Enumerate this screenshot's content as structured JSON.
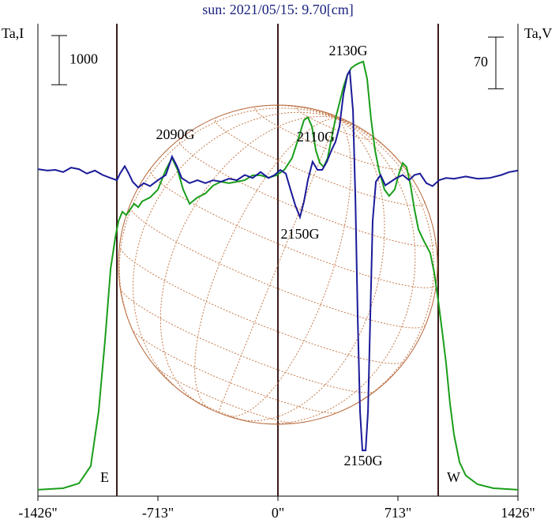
{
  "chart_data": {
    "type": "line",
    "title": "sun: 2021/05/15: 9.70[cm]",
    "y_label": "Ta,I",
    "y2_label": "Ta,V",
    "xlim": [
      -1426,
      1426
    ],
    "xticks": [
      {
        "value": -1426,
        "label": "-1426\""
      },
      {
        "value": -713,
        "label": "-713\""
      },
      {
        "value": 0,
        "label": "0\""
      },
      {
        "value": 713,
        "label": "713\""
      },
      {
        "value": 1426,
        "label": "1426\""
      }
    ],
    "ylim": [
      0,
      9600
    ],
    "y2lim": [
      -440,
      200
    ],
    "scale_bar_y": 1000,
    "scale_bar_y2": 70,
    "limb_labels": [
      "E",
      "W"
    ],
    "annotations": [
      "2090G",
      "2130G",
      "2110G",
      "2150G",
      "2150G"
    ],
    "series": [
      {
        "color": "#1a9e1a",
        "x": [
          -1426,
          -1276,
          -1182,
          -1112,
          -1065,
          -1027,
          -994,
          -966,
          -947,
          -924,
          -901,
          -877,
          -854,
          -830,
          -807,
          -760,
          -713,
          -666,
          -629,
          -596,
          -563,
          -525,
          -478,
          -431,
          -385,
          -338,
          -291,
          -244,
          -197,
          -150,
          -103,
          -56,
          -9,
          38,
          84,
          122,
          155,
          178,
          202,
          225,
          249,
          272,
          295,
          319,
          342,
          366,
          389,
          413,
          436,
          460,
          483,
          507,
          530,
          553,
          577,
          600,
          633,
          661,
          694,
          718,
          741,
          764,
          788,
          811,
          835,
          868,
          905,
          929,
          952,
          976,
          999,
          1022,
          1046,
          1079,
          1116,
          1186,
          1280,
          1426
        ],
        "values": [
          130,
          160,
          260,
          610,
          1730,
          3180,
          4620,
          5260,
          5590,
          5780,
          5710,
          5830,
          5940,
          5870,
          5990,
          6070,
          6230,
          6630,
          6870,
          6630,
          6230,
          5940,
          6070,
          6150,
          6310,
          6390,
          6360,
          6390,
          6420,
          6520,
          6520,
          6470,
          6520,
          6630,
          6870,
          7270,
          7640,
          7700,
          7510,
          7030,
          6770,
          6690,
          6870,
          7270,
          7670,
          7990,
          8310,
          8560,
          8700,
          8760,
          8800,
          8830,
          8480,
          7670,
          7030,
          6630,
          6230,
          6100,
          6230,
          6540,
          6770,
          6690,
          6310,
          5830,
          5420,
          5180,
          4940,
          4540,
          3980,
          3340,
          2700,
          1890,
          1250,
          690,
          420,
          240,
          160,
          130
        ]
      },
      {
        "color": "#1a1a99",
        "axis": "y2",
        "x": [
          -1426,
          -1369,
          -1323,
          -1276,
          -1229,
          -1182,
          -1135,
          -1088,
          -1041,
          -994,
          -957,
          -938,
          -910,
          -886,
          -863,
          -830,
          -797,
          -760,
          -713,
          -666,
          -629,
          -600,
          -572,
          -525,
          -478,
          -431,
          -385,
          -338,
          -291,
          -244,
          -197,
          -150,
          -103,
          -56,
          -19,
          14,
          47,
          75,
          103,
          131,
          155,
          178,
          206,
          235,
          263,
          291,
          319,
          342,
          366,
          389,
          413,
          427,
          446,
          460,
          474,
          488,
          502,
          521,
          535,
          549,
          563,
          582,
          610,
          638,
          671,
          704,
          741,
          779,
          811,
          844,
          882,
          919,
          957,
          999,
          1046,
          1116,
          1187,
          1257,
          1327,
          1374,
          1426
        ],
        "values": [
          3,
          1,
          2,
          -1,
          5,
          3,
          -3,
          1,
          -5,
          -9,
          -12,
          -3,
          7,
          -3,
          -14,
          -22,
          -16,
          -20,
          -12,
          -5,
          20,
          7,
          -9,
          -16,
          -12,
          -16,
          -12,
          -14,
          -10,
          -12,
          -5,
          -9,
          -1,
          -9,
          -5,
          2,
          -3,
          -25,
          -46,
          -62,
          -41,
          -12,
          13,
          2,
          2,
          13,
          29,
          40,
          61,
          104,
          131,
          136,
          82,
          -35,
          -196,
          -325,
          -378,
          -378,
          -325,
          -196,
          -67,
          -14,
          -5,
          -19,
          -14,
          -9,
          -5,
          -12,
          -5,
          -3,
          -16,
          -20,
          -12,
          -9,
          -10,
          -7,
          -10,
          -9,
          -5,
          -1,
          1
        ]
      }
    ]
  }
}
